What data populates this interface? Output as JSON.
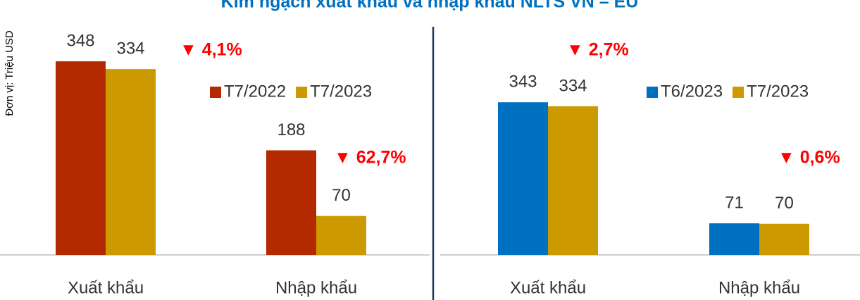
{
  "title": "Kim ngạch xuất khẩu và nhập khẩu NLTS VN – EU",
  "y_label": "Đơn vị: Triệu USD",
  "chart_data": [
    {
      "type": "bar",
      "categories": [
        "Xuất khẩu",
        "Nhập khẩu"
      ],
      "ylim": [
        0,
        400
      ],
      "series": [
        {
          "name": "T7/2022",
          "color": "#b32a00",
          "values": [
            348,
            188
          ]
        },
        {
          "name": "T7/2023",
          "color": "#cc9900",
          "values": [
            334,
            70
          ]
        }
      ],
      "annotations": [
        "▼ 4,1%",
        "▼ 62,7%"
      ]
    },
    {
      "type": "bar",
      "categories": [
        "Xuất khẩu",
        "Nhập khẩu"
      ],
      "ylim": [
        0,
        500
      ],
      "series": [
        {
          "name": "T6/2023",
          "color": "#0070c0",
          "values": [
            343,
            71
          ]
        },
        {
          "name": "T7/2023",
          "color": "#cc9900",
          "values": [
            334,
            70
          ]
        }
      ],
      "annotations": [
        "▼ 2,7%",
        "▼ 0,6%"
      ]
    }
  ]
}
